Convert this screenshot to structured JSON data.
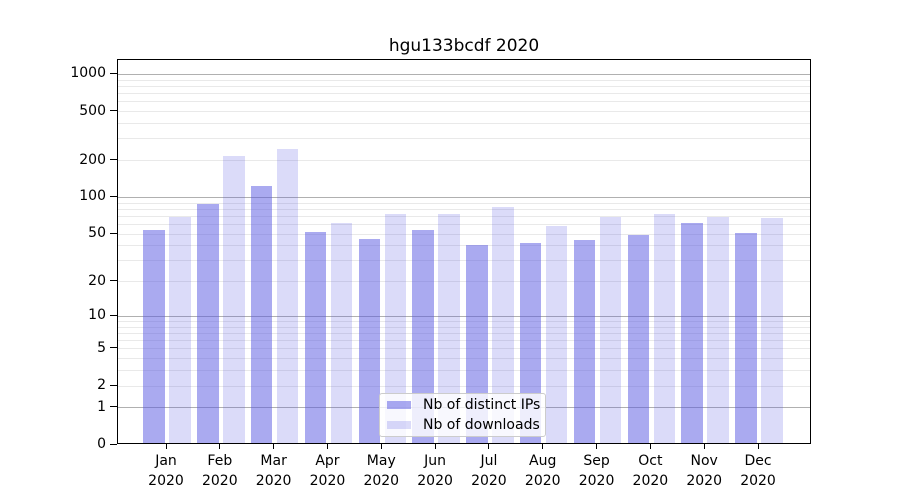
{
  "chart_data": {
    "type": "bar",
    "title": "hgu133bcdf 2020",
    "x": {
      "months": [
        "Jan",
        "Feb",
        "Mar",
        "Apr",
        "May",
        "Jun",
        "Jul",
        "Aug",
        "Sep",
        "Oct",
        "Nov",
        "Dec"
      ],
      "year": "2020"
    },
    "series": [
      {
        "name": "Nb of distinct IPs",
        "values": [
          52,
          85,
          120,
          50,
          44,
          52,
          39,
          41,
          43,
          47,
          59,
          49
        ],
        "color": "rgba(85,85,225,0.5)",
        "color_on_white": "#aaaaf0"
      },
      {
        "name": "Nb of downloads",
        "values": [
          67,
          210,
          240,
          59,
          70,
          70,
          80,
          56,
          66,
          70,
          67,
          65
        ],
        "color": "rgba(85,85,225,0.21)",
        "color_on_white": "#dadaf8"
      }
    ],
    "yscale": "log10(1+y)",
    "ylim": [
      0,
      1300
    ],
    "ytick_labels": [
      "0",
      "1",
      "2",
      "5",
      "10",
      "20",
      "50",
      "100",
      "200",
      "500",
      "1000"
    ],
    "yticks": [
      0,
      1,
      2,
      5,
      10,
      20,
      50,
      100,
      200,
      500,
      1000
    ],
    "grid": {
      "major_at": [
        1,
        10,
        100,
        1000
      ],
      "major_color": "#b0b0b0",
      "minor_color": "#e9e9e9"
    },
    "legend": {
      "location": "inside-bottom-center",
      "frame": true
    }
  },
  "colors": {
    "background": "#ffffff",
    "spine": "#000000",
    "text": "#000000",
    "legend_background": "rgba(255,255,255,0.8)",
    "legend_border": "#cccccc"
  }
}
